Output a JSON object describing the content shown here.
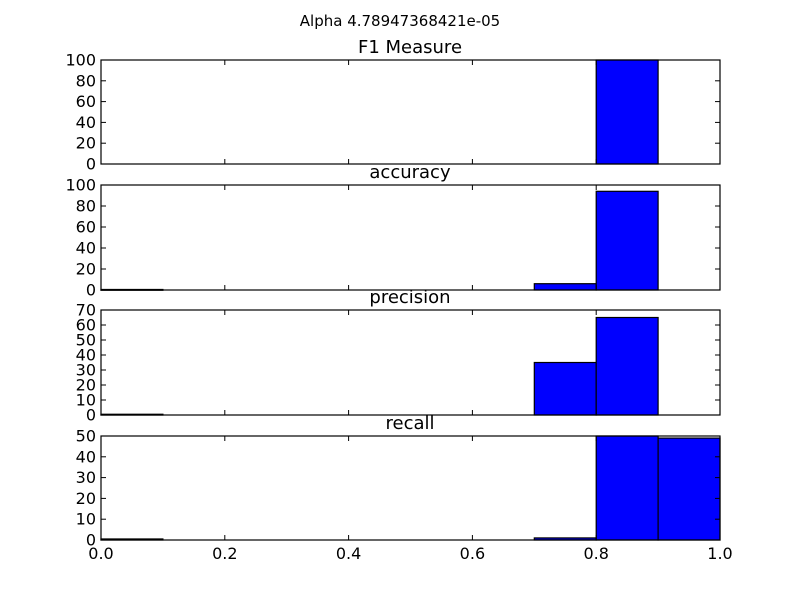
{
  "figure": {
    "suptitle": "Alpha 4.78947368421e-05",
    "bar_color": "#0000ff",
    "edge_color": "#000000"
  },
  "chart_data": [
    {
      "type": "bar",
      "title": "F1 Measure",
      "xlabel": "",
      "ylabel": "",
      "bin_edges": [
        0.0,
        0.1,
        0.2,
        0.3,
        0.4,
        0.5,
        0.6,
        0.7,
        0.8,
        0.9,
        1.0
      ],
      "values": [
        0,
        0,
        0,
        0,
        0,
        0,
        0,
        0,
        100,
        0
      ],
      "xlim": [
        0.0,
        1.0
      ],
      "ylim": [
        0,
        100
      ],
      "yticks": [
        0,
        20,
        40,
        60,
        80,
        100
      ],
      "xticks": [],
      "grid": false
    },
    {
      "type": "bar",
      "title": "accuracy",
      "xlabel": "",
      "ylabel": "",
      "bin_edges": [
        0.0,
        0.1,
        0.2,
        0.3,
        0.4,
        0.5,
        0.6,
        0.7,
        0.8,
        0.9,
        1.0
      ],
      "values": [
        0.5,
        0,
        0,
        0,
        0,
        0,
        0,
        6,
        94,
        0
      ],
      "xlim": [
        0.0,
        1.0
      ],
      "ylim": [
        0,
        100
      ],
      "yticks": [
        0,
        20,
        40,
        60,
        80,
        100
      ],
      "xticks": [],
      "grid": false
    },
    {
      "type": "bar",
      "title": "precision",
      "xlabel": "",
      "ylabel": "",
      "bin_edges": [
        0.0,
        0.1,
        0.2,
        0.3,
        0.4,
        0.5,
        0.6,
        0.7,
        0.8,
        0.9,
        1.0
      ],
      "values": [
        0.5,
        0,
        0,
        0,
        0,
        0,
        0,
        35,
        65,
        0
      ],
      "xlim": [
        0.0,
        1.0
      ],
      "ylim": [
        0,
        70
      ],
      "yticks": [
        0,
        10,
        20,
        30,
        40,
        50,
        60,
        70
      ],
      "xticks": [],
      "grid": false
    },
    {
      "type": "bar",
      "title": "recall",
      "xlabel": "",
      "ylabel": "",
      "bin_edges": [
        0.0,
        0.1,
        0.2,
        0.3,
        0.4,
        0.5,
        0.6,
        0.7,
        0.8,
        0.9,
        1.0
      ],
      "values": [
        0.5,
        0,
        0,
        0,
        0,
        0,
        0,
        1,
        50,
        49
      ],
      "xlim": [
        0.0,
        1.0
      ],
      "ylim": [
        0,
        50
      ],
      "yticks": [
        0,
        10,
        20,
        30,
        40,
        50
      ],
      "xticks": [
        "0.0",
        "0.2",
        "0.4",
        "0.6",
        "0.8",
        "1.0"
      ],
      "grid": false
    }
  ]
}
